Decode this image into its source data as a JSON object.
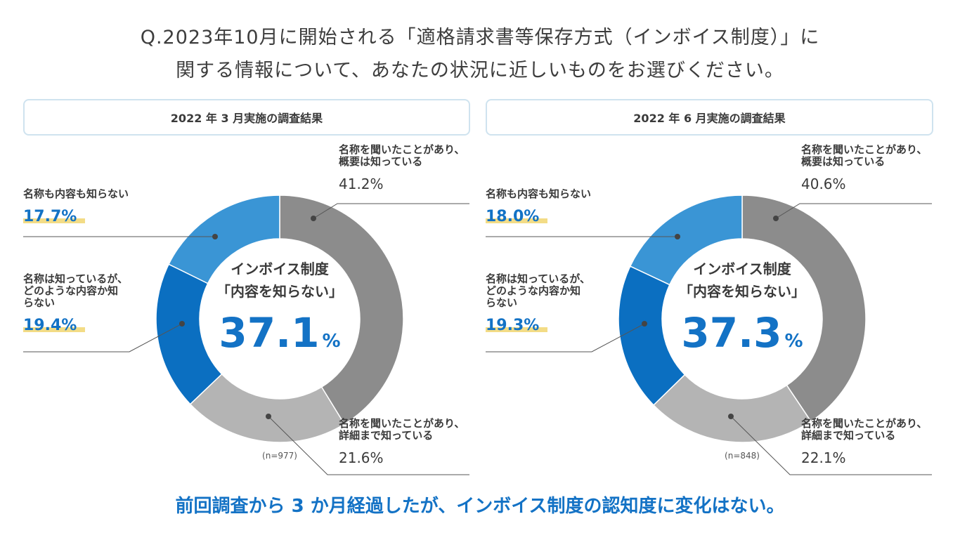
{
  "question": {
    "line1": "Q.2023年10月に開始される「適格請求書等保存方式（インボイス制度）」に",
    "line2": "関する情報について、あなたの状況に近しいものをお選びください。"
  },
  "conclusion": "前回調査から 3 か月経過したが、インボイス制度の認知度に変化はない。",
  "chart_data": [
    {
      "type": "pie",
      "title": "2022 年 3 月実施の調査結果",
      "center_label_line1": "インボイス制度",
      "center_label_line2": "「内容を知らない」",
      "center_value": "37.1",
      "center_unit": "%",
      "sample_size": "(n=977)",
      "slices": [
        {
          "label_lines": [
            "名称を聞いたことがあり、",
            "概要は知っている"
          ],
          "value": 41.2,
          "value_text": "41.2%",
          "color": "#8c8c8c"
        },
        {
          "label_lines": [
            "名称を聞いたことがあり、",
            "詳細まで知っている"
          ],
          "value": 21.6,
          "value_text": "21.6%",
          "color": "#b4b4b4"
        },
        {
          "label_lines": [
            "名称は知っているが、",
            "どのような内容か知",
            "らない"
          ],
          "value": 19.4,
          "value_text": "19.4%",
          "color": "#0b6fc1"
        },
        {
          "label_lines": [
            "名称も内容も知らない"
          ],
          "value": 17.7,
          "value_text": "17.7%",
          "color": "#3a95d5"
        }
      ]
    },
    {
      "type": "pie",
      "title": "2022 年 6 月実施の調査結果",
      "center_label_line1": "インボイス制度",
      "center_label_line2": "「内容を知らない」",
      "center_value": "37.3",
      "center_unit": "%",
      "sample_size": "(n=848)",
      "slices": [
        {
          "label_lines": [
            "名称を聞いたことがあり、",
            "概要は知っている"
          ],
          "value": 40.6,
          "value_text": "40.6%",
          "color": "#8c8c8c"
        },
        {
          "label_lines": [
            "名称を聞いたことがあり、",
            "詳細まで知っている"
          ],
          "value": 22.1,
          "value_text": "22.1%",
          "color": "#b4b4b4"
        },
        {
          "label_lines": [
            "名称は知っているが、",
            "どのような内容か知",
            "らない"
          ],
          "value": 19.3,
          "value_text": "19.3%",
          "color": "#0b6fc1"
        },
        {
          "label_lines": [
            "名称も内容も知らない"
          ],
          "value": 18.0,
          "value_text": "18.0%",
          "color": "#3a95d5"
        }
      ]
    }
  ]
}
